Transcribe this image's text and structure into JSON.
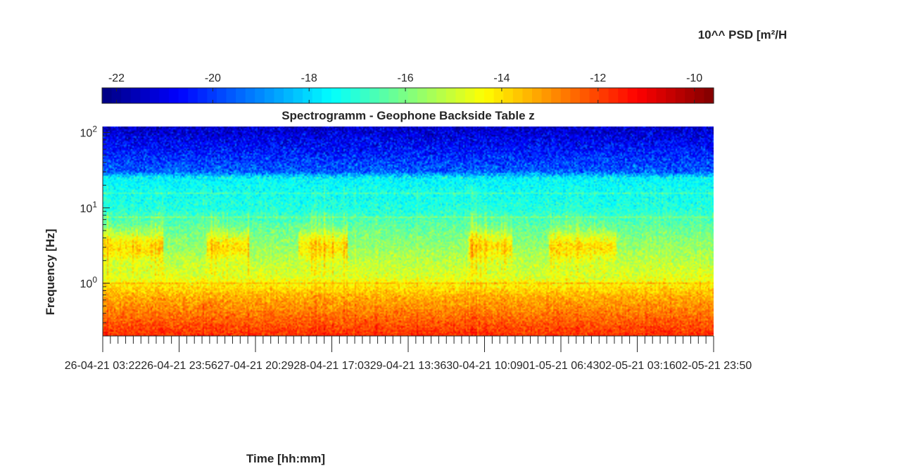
{
  "chart_data": {
    "type": "heatmap",
    "title": "Spectrogramm - Geophone Backside Table z",
    "xlabel": "Time [hh:mm]",
    "ylabel": "Frequency [Hz]",
    "colorbar_label": "10^^ PSD [m²/H",
    "colormap": "jet",
    "colorbar_range": [
      -22.3,
      -9.6
    ],
    "colorbar_ticks": [
      "-22",
      "-20",
      "-18",
      "-16",
      "-14",
      "-12",
      "-10"
    ],
    "colorbar_tick_values": [
      -22,
      -20,
      -18,
      -16,
      -14,
      -12,
      -10
    ],
    "y_scale": "log",
    "ylim": [
      0.2,
      120
    ],
    "y_ticks": [
      {
        "value": 1,
        "base": "10",
        "exp": "0"
      },
      {
        "value": 10,
        "base": "10",
        "exp": "1"
      },
      {
        "value": 100,
        "base": "10",
        "exp": "2"
      }
    ],
    "x_ticks": [
      "26-04-21 03:22",
      "26-04-21 23:56",
      "27-04-21 20:29",
      "28-04-21 17:03",
      "29-04-21 13:36",
      "30-04-21 10:09",
      "01-05-21 06:43",
      "02-05-21 03:16",
      "02-05-21 23:50"
    ],
    "x_minor_ticks_per_major": 10,
    "features": {
      "base_level_by_freq": [
        {
          "freq": 120,
          "level": -21.5
        },
        {
          "freq": 30,
          "level": -19.5
        },
        {
          "freq": 25,
          "level": -17.6
        },
        {
          "freq": 10,
          "level": -17.2
        },
        {
          "freq": 5,
          "level": -16.2
        },
        {
          "freq": 1.2,
          "level": -14.8
        },
        {
          "freq": 0.7,
          "level": -13.5
        },
        {
          "freq": 0.2,
          "level": -11.8
        }
      ],
      "active_periods_3Hz": [
        {
          "start_frac": 0.0,
          "end_frac": 0.1
        },
        {
          "start_frac": 0.17,
          "end_frac": 0.24
        },
        {
          "start_frac": 0.32,
          "end_frac": 0.4
        },
        {
          "start_frac": 0.6,
          "end_frac": 0.67
        },
        {
          "start_frac": 0.73,
          "end_frac": 0.84
        }
      ]
    }
  }
}
